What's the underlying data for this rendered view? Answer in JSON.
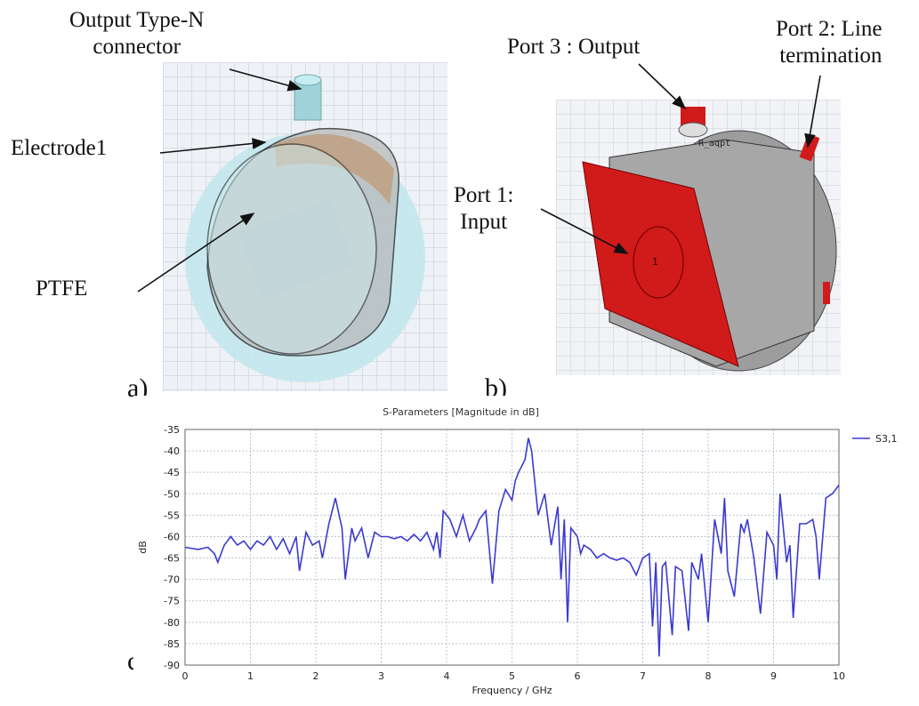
{
  "labels": {
    "connector": "Output Type-N\nconnector",
    "electrode": "Electrode1",
    "ptfe": "PTFE",
    "port3": "Port 3 : Output",
    "port2": "Port 2: Line\ntermination",
    "port1": "Port 1:\nInput",
    "port_tag": "R_aqpt",
    "port_num": "1"
  },
  "panels": {
    "a": "a)",
    "b": "b)",
    "c": "c)"
  },
  "colors": {
    "series": "#3a3ad0",
    "red_port": "#d11a1a",
    "electrode": "#d4802a",
    "ptfe": "#a9dde6",
    "metal": "#b9b9b9",
    "grid": "#b8c3cf"
  },
  "chart_data": {
    "type": "line",
    "title": "S-Parameters [Magnitude in dB]",
    "xlabel": "Frequency / GHz",
    "ylabel": "dB",
    "xlim": [
      0,
      10
    ],
    "ylim": [
      -90,
      -35
    ],
    "xticks": [
      "0",
      "1",
      "2",
      "3",
      "4",
      "5",
      "6",
      "7",
      "8",
      "9",
      "10"
    ],
    "yticks": [
      "-35",
      "-40",
      "-45",
      "-50",
      "-55",
      "-60",
      "-65",
      "-70",
      "-75",
      "-80",
      "-85",
      "-90"
    ],
    "grid": true,
    "legend_position": "top-right",
    "series": [
      {
        "name": "S3,1",
        "x": [
          0,
          0.2,
          0.35,
          0.45,
          0.5,
          0.6,
          0.7,
          0.8,
          0.9,
          1.0,
          1.1,
          1.2,
          1.3,
          1.4,
          1.5,
          1.6,
          1.7,
          1.75,
          1.85,
          1.95,
          2.05,
          2.1,
          2.2,
          2.3,
          2.4,
          2.45,
          2.55,
          2.6,
          2.7,
          2.8,
          2.9,
          3.0,
          3.1,
          3.2,
          3.3,
          3.4,
          3.5,
          3.6,
          3.7,
          3.8,
          3.85,
          3.9,
          3.95,
          4.05,
          4.15,
          4.25,
          4.35,
          4.45,
          4.5,
          4.6,
          4.7,
          4.8,
          4.9,
          5.0,
          5.05,
          5.1,
          5.2,
          5.25,
          5.3,
          5.4,
          5.5,
          5.6,
          5.7,
          5.75,
          5.8,
          5.85,
          5.9,
          6.0,
          6.05,
          6.1,
          6.2,
          6.3,
          6.4,
          6.5,
          6.6,
          6.7,
          6.8,
          6.9,
          7.0,
          7.1,
          7.15,
          7.2,
          7.25,
          7.3,
          7.35,
          7.45,
          7.5,
          7.6,
          7.7,
          7.75,
          7.85,
          7.9,
          8.0,
          8.1,
          8.2,
          8.25,
          8.3,
          8.4,
          8.5,
          8.55,
          8.6,
          8.7,
          8.8,
          8.9,
          9.0,
          9.05,
          9.1,
          9.2,
          9.25,
          9.3,
          9.4,
          9.5,
          9.6,
          9.65,
          9.7,
          9.8,
          9.9,
          10.0
        ],
        "y": [
          -62.5,
          -63,
          -62.5,
          -64,
          -66,
          -62,
          -60,
          -62,
          -61,
          -63,
          -61,
          -62,
          -60,
          -63,
          -60.5,
          -64,
          -60,
          -68,
          -59,
          -62,
          -61,
          -65,
          -57,
          -51,
          -58,
          -70,
          -58,
          -61,
          -58,
          -65,
          -59,
          -60,
          -60,
          -60.5,
          -60,
          -61,
          -59.5,
          -61,
          -59,
          -63,
          -59,
          -65,
          -54,
          -56,
          -60,
          -55,
          -61,
          -58,
          -56,
          -54,
          -71,
          -54,
          -49,
          -51.5,
          -47,
          -45,
          -42,
          -37,
          -40,
          -55,
          -50,
          -62,
          -53,
          -70,
          -56,
          -80,
          -58,
          -60,
          -64,
          -62,
          -63,
          -65,
          -64,
          -65,
          -65.5,
          -65,
          -66,
          -69,
          -65,
          -64,
          -81,
          -66,
          -88,
          -67,
          -66,
          -83,
          -67,
          -68,
          -82,
          -66,
          -70,
          -64,
          -80,
          -56,
          -64,
          -51,
          -68,
          -74,
          -57,
          -59,
          -56,
          -65,
          -78,
          -59,
          -62,
          -70,
          -50,
          -66,
          -62,
          -79,
          -57,
          -57,
          -56,
          -60,
          -70,
          -51,
          -50,
          -48
        ]
      }
    ]
  }
}
